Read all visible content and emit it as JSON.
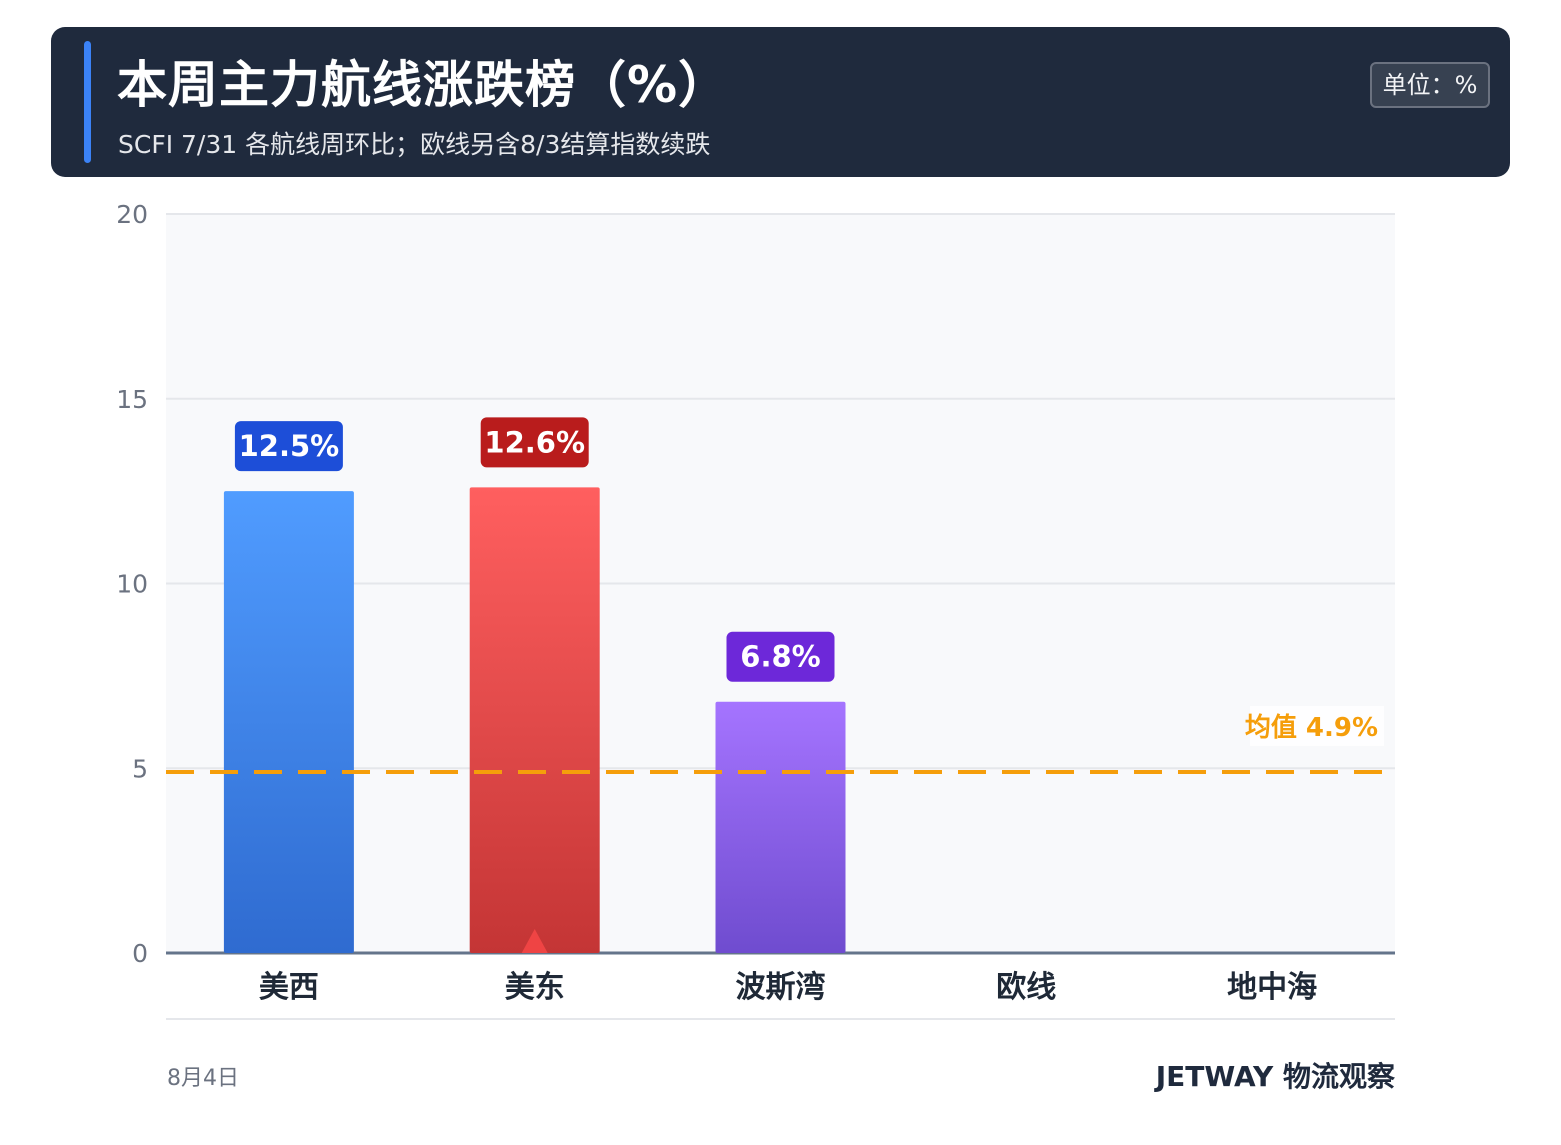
{
  "header": {
    "title": "本周主力航线涨跌榜（%）",
    "subtitle": "SCFI 7/31 各航线周环比；欧线另含8/3结算指数续跌",
    "unit_badge": "单位：%"
  },
  "footer": {
    "date": "8月4日",
    "brand": "JETWAY 物流观察"
  },
  "colors": {
    "header_bg": "#1f2a3d",
    "accent": "#3b82f6",
    "plot_bg": "#f8f9fb",
    "mean_line": "#f59e0b"
  },
  "chart_data": {
    "type": "bar",
    "categories": [
      "美西",
      "美东",
      "波斯湾",
      "欧线",
      "地中海"
    ],
    "values": [
      12.5,
      12.6,
      6.8,
      null,
      null
    ],
    "labels": [
      "12.5%",
      "12.6%",
      "6.8%",
      "",
      ""
    ],
    "bar_colors": [
      {
        "top": "#509cff",
        "bottom": "#2f6bd0",
        "label_bg": "#1d4ed8"
      },
      {
        "top": "#ff5f5f",
        "bottom": "#c43535",
        "label_bg": "#b91c1c"
      },
      {
        "top": "#a574ff",
        "bottom": "#6f4ccf",
        "label_bg": "#6d28d9"
      },
      {
        "top": "#cccccc",
        "bottom": "#999999",
        "label_bg": "#666666"
      },
      {
        "top": "#cccccc",
        "bottom": "#999999",
        "label_bg": "#666666"
      }
    ],
    "ylim": [
      0,
      20
    ],
    "yticks": [
      0,
      5,
      10,
      15,
      20
    ],
    "grid": true,
    "reference_line": {
      "value": 4.9,
      "label": "均值 4.9%"
    },
    "marker": {
      "category_index": 1,
      "shape": "triangle-up",
      "color": "#ef4444"
    }
  }
}
